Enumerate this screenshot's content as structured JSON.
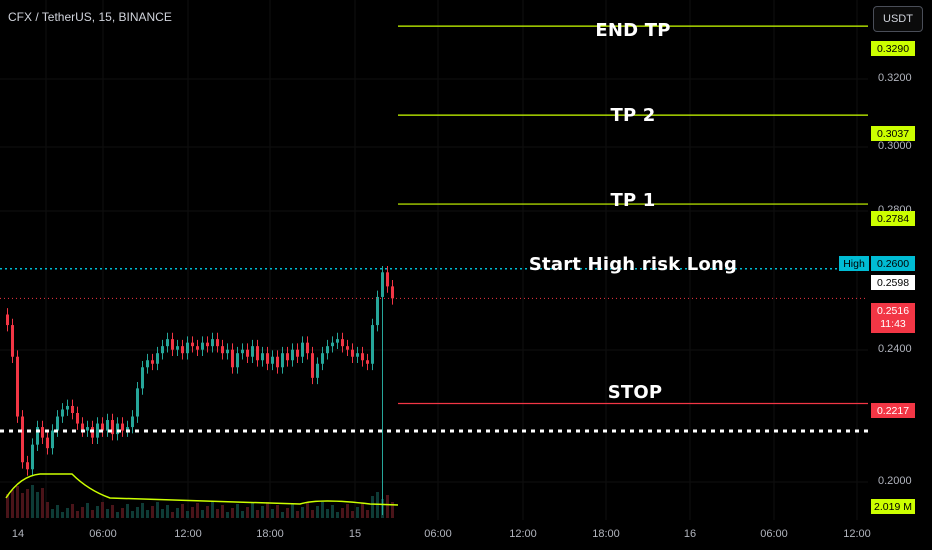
{
  "header": {
    "symbol": "CFX / TetherUS, 15, BINANCE",
    "currency": "USDT"
  },
  "annotations": {
    "end_tp": "END TP",
    "tp2": "TP 2",
    "tp1": "TP 1",
    "start": "Start High risk Long",
    "stop": "STOP"
  },
  "price_labels": {
    "end_tp": "0.3290",
    "tp2": "0.3037",
    "tp1": "0.2784",
    "high_tag": "High",
    "high_value": "0.2600",
    "entry": "0.2598",
    "last_price": "0.2516",
    "countdown": "11:43",
    "stop": "0.2217",
    "volume": "2.019 M"
  },
  "y_axis": {
    "ticks": [
      "0.3200",
      "0.3000",
      "0.2800",
      "0.2400",
      "0.2000"
    ]
  },
  "x_axis": {
    "ticks": [
      "14",
      "06:00",
      "12:00",
      "18:00",
      "15",
      "06:00",
      "12:00",
      "18:00",
      "16",
      "06:00",
      "12:00"
    ]
  },
  "colors": {
    "up": "#26a69a",
    "down": "#f23645",
    "level": "#ccff00",
    "stop": "#f23645",
    "entry": "#00bcd4",
    "volume_ma": "#ccff00"
  },
  "chart_data": {
    "type": "candlestick",
    "ylim": [
      0.19,
      0.335
    ],
    "levels": [
      {
        "label": "END TP",
        "value": 0.329
      },
      {
        "label": "TP 2",
        "value": 0.3037
      },
      {
        "label": "TP 1",
        "value": 0.2784
      },
      {
        "label": "Start High risk Long",
        "value": 0.2598
      },
      {
        "label": "STOP",
        "value": 0.2217
      }
    ],
    "high": 0.26,
    "last_price": 0.2516,
    "candle_closes": [
      0.244,
      0.235,
      0.218,
      0.205,
      0.203,
      0.21,
      0.215,
      0.212,
      0.209,
      0.214,
      0.218,
      0.22,
      0.221,
      0.219,
      0.216,
      0.214,
      0.215,
      0.212,
      0.216,
      0.214,
      0.217,
      0.213,
      0.216,
      0.214,
      0.215,
      0.218,
      0.226,
      0.232,
      0.234,
      0.233,
      0.236,
      0.238,
      0.24,
      0.237,
      0.238,
      0.236,
      0.239,
      0.238,
      0.237,
      0.239,
      0.238,
      0.24,
      0.238,
      0.236,
      0.237,
      0.232,
      0.236,
      0.237,
      0.235,
      0.238,
      0.234,
      0.236,
      0.233,
      0.235,
      0.232,
      0.236,
      0.234,
      0.237,
      0.235,
      0.239,
      0.236,
      0.229,
      0.233,
      0.236,
      0.238,
      0.239,
      0.24,
      0.238,
      0.237,
      0.235,
      0.236,
      0.234,
      0.233,
      0.244,
      0.252,
      0.259,
      0.255,
      0.2516
    ]
  }
}
